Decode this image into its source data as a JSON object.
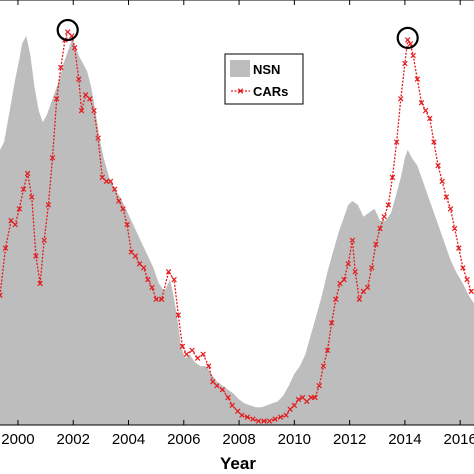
{
  "chart_data": {
    "type": "area",
    "xlabel": "Year",
    "x_ticks": [
      "2000",
      "2002",
      "2004",
      "2006",
      "2008",
      "2010",
      "2012",
      "2014",
      "2016"
    ],
    "xlim": [
      1999.35,
      2016.5
    ],
    "ylim": [
      0,
      1
    ],
    "grid": false,
    "legend_position": "top-center",
    "series": [
      {
        "name": "NSN",
        "style": "filled-area",
        "color": "#bdbdbd",
        "points": [
          [
            1999.35,
            0.7
          ],
          [
            1999.5,
            0.72
          ],
          [
            1999.7,
            0.8
          ],
          [
            1999.9,
            0.88
          ],
          [
            2000.05,
            0.93
          ],
          [
            2000.15,
            0.97
          ],
          [
            2000.3,
            0.99
          ],
          [
            2000.45,
            0.94
          ],
          [
            2000.6,
            0.86
          ],
          [
            2000.75,
            0.8
          ],
          [
            2000.9,
            0.77
          ],
          [
            2001.05,
            0.79
          ],
          [
            2001.2,
            0.82
          ],
          [
            2001.35,
            0.85
          ],
          [
            2001.5,
            0.88
          ],
          [
            2001.65,
            0.92
          ],
          [
            2001.8,
            0.95
          ],
          [
            2001.95,
            0.98
          ],
          [
            2002.05,
            0.97
          ],
          [
            2002.2,
            0.94
          ],
          [
            2002.35,
            0.92
          ],
          [
            2002.5,
            0.9
          ],
          [
            2002.65,
            0.86
          ],
          [
            2002.8,
            0.8
          ],
          [
            2002.95,
            0.73
          ],
          [
            2003.1,
            0.68
          ],
          [
            2003.3,
            0.63
          ],
          [
            2003.5,
            0.6
          ],
          [
            2003.7,
            0.58
          ],
          [
            2003.9,
            0.55
          ],
          [
            2004.1,
            0.52
          ],
          [
            2004.3,
            0.49
          ],
          [
            2004.5,
            0.46
          ],
          [
            2004.7,
            0.43
          ],
          [
            2004.9,
            0.4
          ],
          [
            2005.1,
            0.36
          ],
          [
            2005.3,
            0.34
          ],
          [
            2005.5,
            0.37
          ],
          [
            2005.6,
            0.34
          ],
          [
            2005.75,
            0.28
          ],
          [
            2005.9,
            0.2
          ],
          [
            2006.05,
            0.17
          ],
          [
            2006.2,
            0.18
          ],
          [
            2006.4,
            0.16
          ],
          [
            2006.6,
            0.15
          ],
          [
            2006.8,
            0.15
          ],
          [
            2007.0,
            0.13
          ],
          [
            2007.2,
            0.11
          ],
          [
            2007.4,
            0.1
          ],
          [
            2007.6,
            0.09
          ],
          [
            2007.8,
            0.08
          ],
          [
            2008.0,
            0.065
          ],
          [
            2008.2,
            0.055
          ],
          [
            2008.4,
            0.05
          ],
          [
            2008.6,
            0.045
          ],
          [
            2008.8,
            0.045
          ],
          [
            2009.0,
            0.05
          ],
          [
            2009.2,
            0.055
          ],
          [
            2009.4,
            0.06
          ],
          [
            2009.6,
            0.075
          ],
          [
            2009.8,
            0.1
          ],
          [
            2010.0,
            0.13
          ],
          [
            2010.2,
            0.15
          ],
          [
            2010.4,
            0.18
          ],
          [
            2010.6,
            0.23
          ],
          [
            2010.8,
            0.28
          ],
          [
            2011.0,
            0.33
          ],
          [
            2011.2,
            0.39
          ],
          [
            2011.4,
            0.44
          ],
          [
            2011.6,
            0.49
          ],
          [
            2011.8,
            0.53
          ],
          [
            2011.95,
            0.56
          ],
          [
            2012.1,
            0.57
          ],
          [
            2012.3,
            0.56
          ],
          [
            2012.5,
            0.53
          ],
          [
            2012.7,
            0.54
          ],
          [
            2012.9,
            0.55
          ],
          [
            2013.1,
            0.52
          ],
          [
            2013.3,
            0.52
          ],
          [
            2013.5,
            0.54
          ],
          [
            2013.7,
            0.59
          ],
          [
            2013.85,
            0.63
          ],
          [
            2014.0,
            0.68
          ],
          [
            2014.1,
            0.7
          ],
          [
            2014.25,
            0.68
          ],
          [
            2014.45,
            0.66
          ],
          [
            2014.65,
            0.62
          ],
          [
            2014.85,
            0.58
          ],
          [
            2015.05,
            0.54
          ],
          [
            2015.25,
            0.5
          ],
          [
            2015.45,
            0.46
          ],
          [
            2015.65,
            0.42
          ],
          [
            2015.85,
            0.39
          ],
          [
            2016.1,
            0.36
          ],
          [
            2016.3,
            0.33
          ],
          [
            2016.5,
            0.31
          ]
        ]
      },
      {
        "name": "CARs",
        "style": "line-with-x-markers",
        "color": "#e41a1c",
        "points": [
          [
            1999.35,
            0.33
          ],
          [
            1999.55,
            0.45
          ],
          [
            1999.75,
            0.52
          ],
          [
            1999.9,
            0.51
          ],
          [
            2000.05,
            0.55
          ],
          [
            2000.2,
            0.6
          ],
          [
            2000.35,
            0.64
          ],
          [
            2000.5,
            0.58
          ],
          [
            2000.65,
            0.43
          ],
          [
            2000.8,
            0.36
          ],
          [
            2000.95,
            0.47
          ],
          [
            2001.1,
            0.56
          ],
          [
            2001.25,
            0.68
          ],
          [
            2001.4,
            0.83
          ],
          [
            2001.55,
            0.91
          ],
          [
            2001.7,
            0.98
          ],
          [
            2001.8,
            1.0
          ],
          [
            2001.95,
            0.99
          ],
          [
            2002.05,
            0.96
          ],
          [
            2002.2,
            0.88
          ],
          [
            2002.3,
            0.8
          ],
          [
            2002.45,
            0.84
          ],
          [
            2002.6,
            0.83
          ],
          [
            2002.75,
            0.8
          ],
          [
            2002.9,
            0.73
          ],
          [
            2003.05,
            0.63
          ],
          [
            2003.2,
            0.62
          ],
          [
            2003.35,
            0.62
          ],
          [
            2003.5,
            0.6
          ],
          [
            2003.65,
            0.57
          ],
          [
            2003.8,
            0.55
          ],
          [
            2003.95,
            0.51
          ],
          [
            2004.1,
            0.44
          ],
          [
            2004.25,
            0.43
          ],
          [
            2004.4,
            0.41
          ],
          [
            2004.55,
            0.4
          ],
          [
            2004.7,
            0.37
          ],
          [
            2004.85,
            0.35
          ],
          [
            2005.0,
            0.32
          ],
          [
            2005.2,
            0.32
          ],
          [
            2005.45,
            0.39
          ],
          [
            2005.65,
            0.37
          ],
          [
            2005.8,
            0.28
          ],
          [
            2005.95,
            0.2
          ],
          [
            2006.1,
            0.18
          ],
          [
            2006.3,
            0.19
          ],
          [
            2006.5,
            0.17
          ],
          [
            2006.7,
            0.18
          ],
          [
            2006.9,
            0.15
          ],
          [
            2007.05,
            0.11
          ],
          [
            2007.2,
            0.1
          ],
          [
            2007.4,
            0.09
          ],
          [
            2007.6,
            0.07
          ],
          [
            2007.75,
            0.05
          ],
          [
            2007.95,
            0.035
          ],
          [
            2008.1,
            0.025
          ],
          [
            2008.3,
            0.02
          ],
          [
            2008.5,
            0.015
          ],
          [
            2008.7,
            0.01
          ],
          [
            2008.9,
            0.01
          ],
          [
            2009.1,
            0.01
          ],
          [
            2009.3,
            0.015
          ],
          [
            2009.5,
            0.02
          ],
          [
            2009.7,
            0.025
          ],
          [
            2009.85,
            0.04
          ],
          [
            2010.0,
            0.05
          ],
          [
            2010.15,
            0.065
          ],
          [
            2010.3,
            0.07
          ],
          [
            2010.45,
            0.06
          ],
          [
            2010.6,
            0.07
          ],
          [
            2010.75,
            0.07
          ],
          [
            2010.9,
            0.1
          ],
          [
            2011.05,
            0.15
          ],
          [
            2011.2,
            0.19
          ],
          [
            2011.35,
            0.26
          ],
          [
            2011.5,
            0.32
          ],
          [
            2011.65,
            0.36
          ],
          [
            2011.8,
            0.37
          ],
          [
            2011.95,
            0.41
          ],
          [
            2012.1,
            0.47
          ],
          [
            2012.2,
            0.39
          ],
          [
            2012.35,
            0.32
          ],
          [
            2012.5,
            0.34
          ],
          [
            2012.65,
            0.35
          ],
          [
            2012.8,
            0.4
          ],
          [
            2012.95,
            0.46
          ],
          [
            2013.1,
            0.5
          ],
          [
            2013.25,
            0.53
          ],
          [
            2013.4,
            0.56
          ],
          [
            2013.55,
            0.63
          ],
          [
            2013.7,
            0.72
          ],
          [
            2013.85,
            0.83
          ],
          [
            2014.0,
            0.92
          ],
          [
            2014.1,
            0.98
          ],
          [
            2014.2,
            0.97
          ],
          [
            2014.3,
            0.94
          ],
          [
            2014.45,
            0.88
          ],
          [
            2014.6,
            0.82
          ],
          [
            2014.75,
            0.8
          ],
          [
            2014.9,
            0.78
          ],
          [
            2015.05,
            0.72
          ],
          [
            2015.2,
            0.66
          ],
          [
            2015.35,
            0.62
          ],
          [
            2015.5,
            0.58
          ],
          [
            2015.65,
            0.55
          ],
          [
            2015.8,
            0.5
          ],
          [
            2015.95,
            0.45
          ],
          [
            2016.1,
            0.4
          ],
          [
            2016.25,
            0.37
          ],
          [
            2016.4,
            0.34
          ]
        ]
      }
    ],
    "annotations": [
      {
        "type": "circle",
        "label": "peak",
        "x": 2001.8,
        "y": 1.0
      },
      {
        "type": "circle",
        "label": "peak",
        "x": 2014.1,
        "y": 0.98
      }
    ]
  }
}
